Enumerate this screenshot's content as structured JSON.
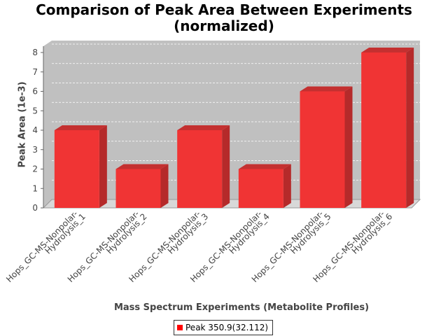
{
  "chart_data": {
    "type": "bar",
    "title_lines": [
      "Comparison of Peak Area Between Experiments",
      "(normalized)"
    ],
    "xlabel": "Mass Spectrum Experiments (Metabolite Profiles)",
    "ylabel": "Peak Area (1e-3)",
    "categories": [
      [
        "Hops_GC-MS-Nonpolar-",
        "Hydrolysis_1"
      ],
      [
        "Hops_GC-MS-Nonpolar-",
        "Hydrolysis_2"
      ],
      [
        "Hops_GC-MS-Nonpolar-",
        "Hydrolysis_3"
      ],
      [
        "Hops_GC-MS-Nonpolar-",
        "Hydrolysis_4"
      ],
      [
        "Hops_GC-MS-Nonpolar-",
        "Hydrolysis_5"
      ],
      [
        "Hops_GC-MS-Nonpolar-",
        "Hydrolysis_6"
      ]
    ],
    "series": [
      {
        "name": "Peak 350.9(32.112)",
        "color": "#ff0000",
        "values": [
          4,
          2,
          4,
          2,
          6,
          8
        ]
      }
    ],
    "ylim": [
      0,
      8
    ],
    "yticks": [
      "0",
      "1",
      "2",
      "3",
      "4",
      "5",
      "6",
      "7",
      "8"
    ],
    "grid": true,
    "legend_position": "bottom"
  }
}
